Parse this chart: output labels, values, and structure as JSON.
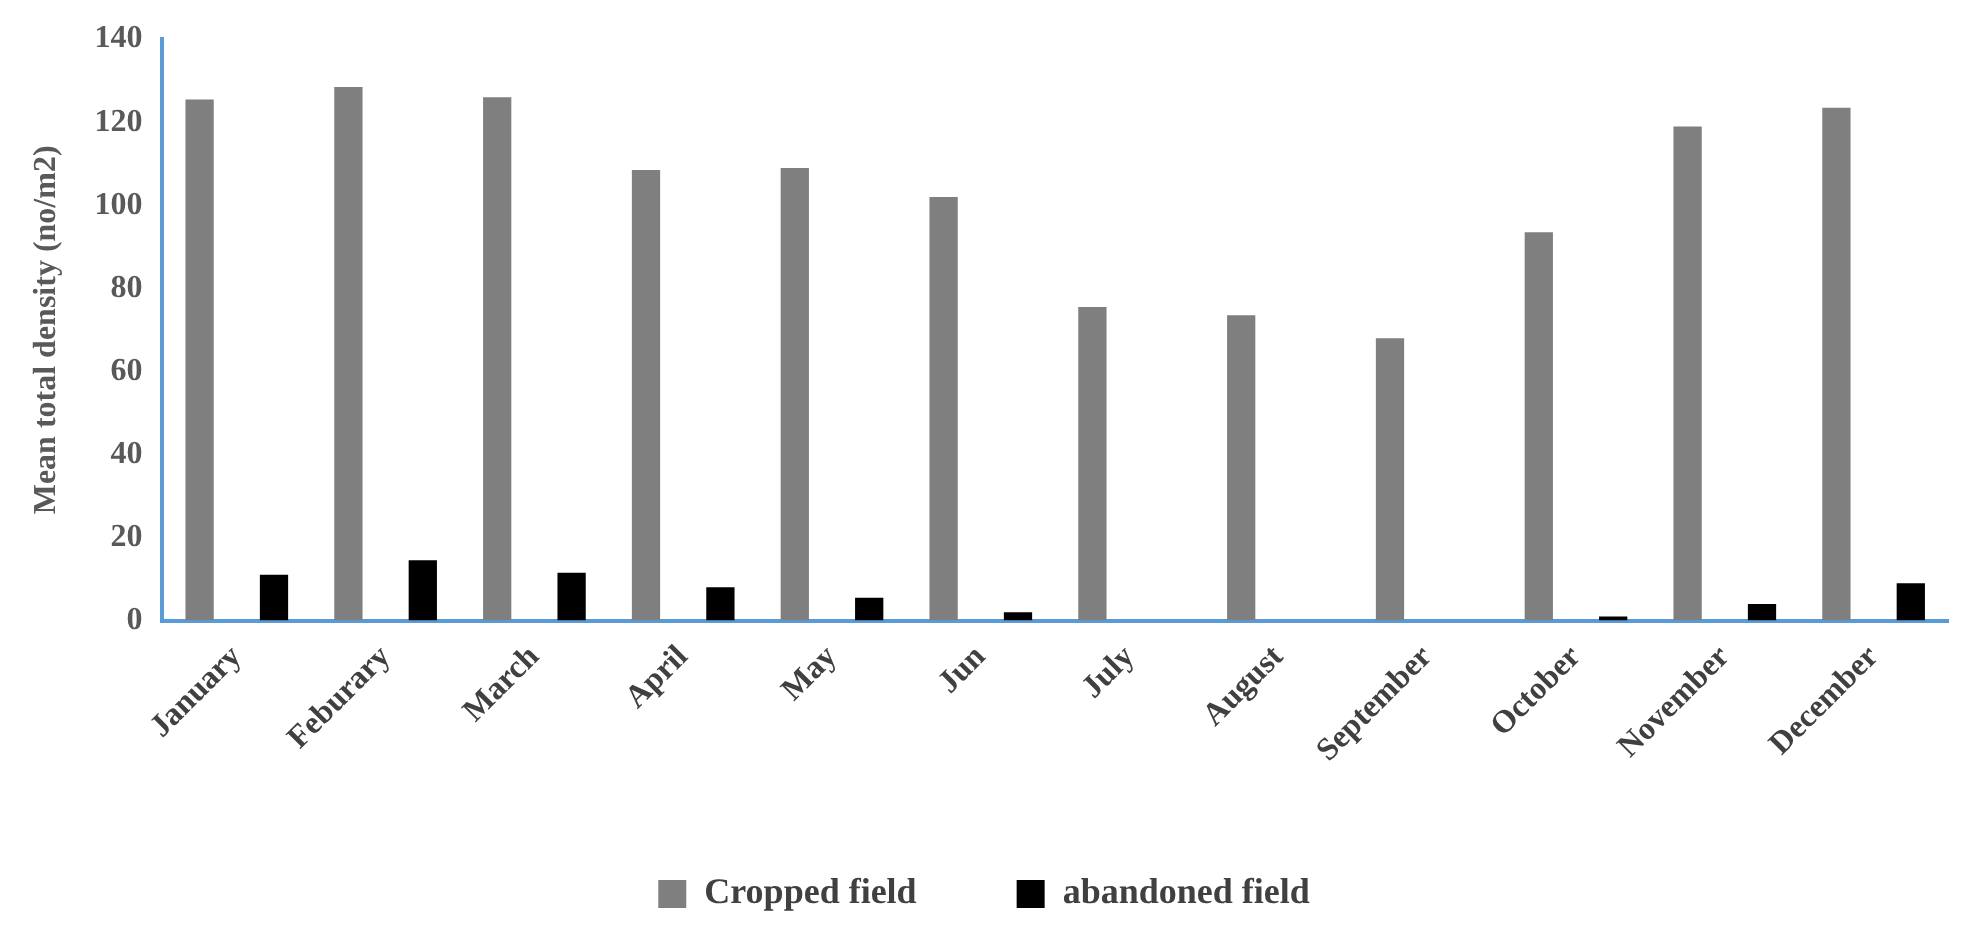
{
  "chart_data": {
    "type": "bar",
    "ylabel": "Mean total density (no/m2)",
    "categories": [
      "January",
      "Feburary",
      "March",
      "April",
      "May",
      "Jun",
      "July",
      "August",
      "September",
      "October",
      "November",
      "December"
    ],
    "series": [
      {
        "name": "Cropped field",
        "color": "#7f7f7f",
        "values": [
          125.5,
          128.5,
          126,
          108.5,
          109,
          102,
          75.5,
          73.5,
          68,
          93.5,
          119,
          123.5
        ]
      },
      {
        "name": "abandoned field",
        "color": "#000000",
        "values": [
          11,
          14.5,
          11.5,
          8,
          5.5,
          2,
          0,
          0,
          0,
          1,
          4,
          9
        ]
      }
    ],
    "ylim": [
      0,
      140
    ],
    "yticks": [
      0,
      20,
      40,
      60,
      80,
      100,
      120,
      140
    ],
    "grid": false,
    "legend": "bottom"
  }
}
